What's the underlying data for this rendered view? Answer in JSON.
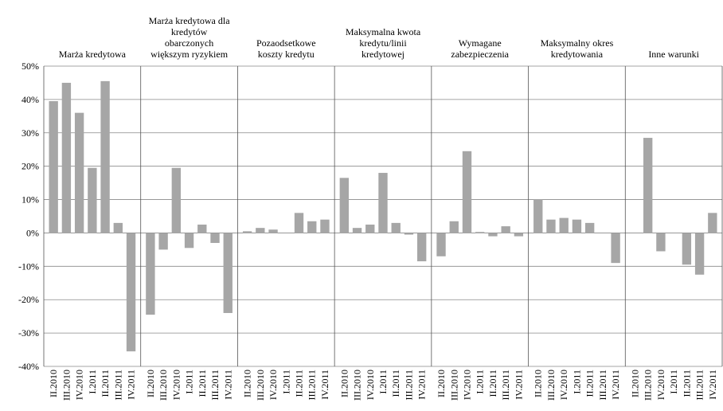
{
  "chart_data": {
    "type": "bar",
    "categories": [
      "II.2010",
      "III.2010",
      "IV.2010",
      "I.2011",
      "II.2011",
      "III.2011",
      "IV.2011"
    ],
    "color": "#a6a6a6",
    "groups": [
      {
        "name": [
          "Marża kredytowa"
        ],
        "values": [
          39.5,
          45,
          36,
          19.5,
          45.5,
          3,
          -35.5
        ]
      },
      {
        "name": [
          "Marża kredytowa dla",
          "kredytów",
          "obarczonych",
          "większym ryzykiem"
        ],
        "values": [
          -24.5,
          -5,
          19.5,
          -4.5,
          2.5,
          -3,
          -24
        ]
      },
      {
        "name": [
          "Pozaodsetkowe",
          "koszty kredytu"
        ],
        "values": [
          0.5,
          1.5,
          1,
          0,
          6,
          3.5,
          4
        ]
      },
      {
        "name": [
          "Maksymalna kwota",
          "kredytu/linii",
          "kredytowej"
        ],
        "values": [
          16.5,
          1.5,
          2.5,
          18,
          3,
          -0.5,
          -8.5
        ]
      },
      {
        "name": [
          "Wymagane",
          "zabezpieczenia"
        ],
        "values": [
          -7,
          3.5,
          24.5,
          0.3,
          -1,
          2,
          -1
        ]
      },
      {
        "name": [
          "Maksymalny okres",
          "kredytowania"
        ],
        "values": [
          10,
          4,
          4.5,
          4,
          3,
          0,
          -9
        ]
      },
      {
        "name": [
          "Inne warunki"
        ],
        "values": [
          0,
          28.5,
          -5.5,
          0,
          -9.5,
          -12.5,
          6
        ]
      }
    ],
    "ylim": [
      -40,
      50
    ],
    "yticks": [
      {
        "value": -40,
        "label": "-40%"
      },
      {
        "value": -30,
        "label": "-30%"
      },
      {
        "value": -20,
        "label": "-20%"
      },
      {
        "value": -10,
        "label": "-10%"
      },
      {
        "value": 0,
        "label": "0%"
      },
      {
        "value": 10,
        "label": "10%"
      },
      {
        "value": 20,
        "label": "20%"
      },
      {
        "value": 30,
        "label": "30%"
      },
      {
        "value": 40,
        "label": "40%"
      },
      {
        "value": 50,
        "label": "50%"
      }
    ],
    "grid": true
  }
}
